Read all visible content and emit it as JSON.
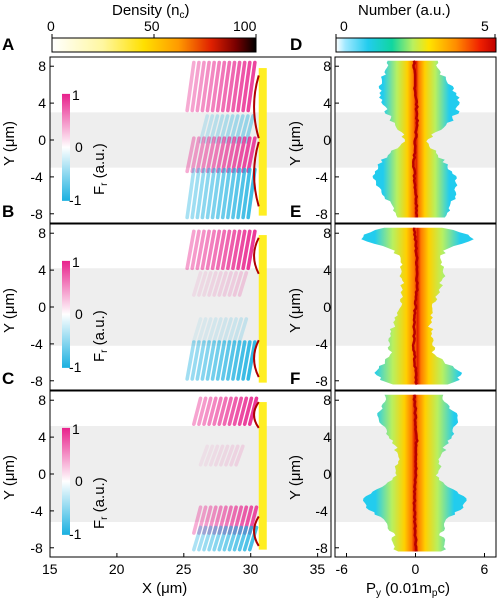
{
  "left_colorbar": {
    "title": "Density (n",
    "title_sub": "c",
    "title_end": ")",
    "ticks": [
      "0",
      "50",
      "100"
    ]
  },
  "right_colorbar": {
    "title": "Number (a.u.)",
    "ticks": [
      "0",
      "5"
    ]
  },
  "panel_labels": [
    "A",
    "B",
    "C",
    "D",
    "E",
    "F"
  ],
  "y_ticks": [
    "8",
    "4",
    "0",
    "-4",
    "-8"
  ],
  "y_label": "Y (μm)",
  "x_ticks_left": [
    "15",
    "20",
    "25",
    "30",
    "35"
  ],
  "x_label_left": "X (μm)",
  "x_ticks_right": [
    "-6",
    "0",
    "6"
  ],
  "x_label_right_main": "P",
  "x_label_right_sub": "y",
  "x_label_right_rest": " (0.01m",
  "x_label_right_sub2": "p",
  "x_label_right_end": "c)",
  "inset_colorbar": {
    "ticks": [
      "1",
      "0",
      "-1"
    ],
    "label_main": "F",
    "label_sub": "r",
    "label_rest": " (a.u.)"
  },
  "colors": {
    "shade": "#eeeeee",
    "target": "#ffee22",
    "positive": "#e8218c",
    "negative": "#1ab0e0"
  },
  "chart_data": [
    {
      "panel": "A",
      "type": "heatmap",
      "xlabel": "X (μm)",
      "ylabel": "Y (μm)",
      "xlim": [
        15,
        36
      ],
      "ylim": [
        -9,
        9
      ],
      "shaded_y": [
        -3,
        3
      ]
    },
    {
      "panel": "B",
      "type": "heatmap",
      "xlabel": "X (μm)",
      "ylabel": "Y (μm)",
      "xlim": [
        15,
        36
      ],
      "ylim": [
        -9,
        9
      ],
      "shaded_y": [
        -4.2,
        4.2
      ]
    },
    {
      "panel": "C",
      "type": "heatmap",
      "xlabel": "X (μm)",
      "ylabel": "Y (μm)",
      "xlim": [
        15,
        36
      ],
      "ylim": [
        -9,
        9
      ],
      "shaded_y": [
        -5.2,
        5.2
      ]
    },
    {
      "panel": "D",
      "type": "heatmap",
      "xlabel": "Py (0.01mpc)",
      "ylabel": "Y (μm)",
      "xlim": [
        -7,
        7
      ],
      "ylim": [
        -9,
        9
      ],
      "shaded_y": [
        -3,
        3
      ]
    },
    {
      "panel": "E",
      "type": "heatmap",
      "xlabel": "Py (0.01mpc)",
      "ylabel": "Y (μm)",
      "xlim": [
        -7,
        7
      ],
      "ylim": [
        -9,
        9
      ],
      "shaded_y": [
        -4.2,
        4.2
      ]
    },
    {
      "panel": "F",
      "type": "heatmap",
      "xlabel": "Py (0.01mpc)",
      "ylabel": "Y (μm)",
      "xlim": [
        -7,
        7
      ],
      "ylim": [
        -9,
        9
      ],
      "shaded_y": [
        -5.2,
        5.2
      ]
    }
  ]
}
